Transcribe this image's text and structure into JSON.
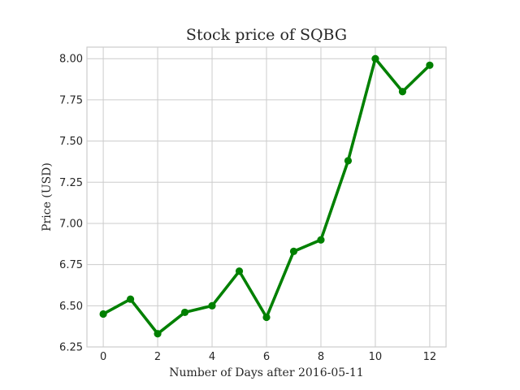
{
  "chart_data": {
    "type": "line",
    "title": "Stock price of SQBG",
    "xlabel": "Number of Days after 2016-05-11",
    "ylabel": "Price (USD)",
    "x": [
      0,
      1,
      2,
      3,
      4,
      5,
      6,
      7,
      8,
      9,
      10,
      11,
      12
    ],
    "series": [
      {
        "values": [
          6.45,
          6.54,
          6.33,
          6.46,
          6.5,
          6.71,
          6.43,
          6.83,
          6.9,
          7.38,
          8.0,
          7.8,
          7.96
        ],
        "color": "#008000",
        "marker": "circle"
      }
    ],
    "xlim": [
      -0.6,
      12.6
    ],
    "ylim": [
      6.25,
      8.07
    ],
    "xticks": [
      0,
      2,
      4,
      6,
      8,
      10,
      12
    ],
    "xtick_labels": [
      "0",
      "2",
      "4",
      "6",
      "8",
      "10",
      "12"
    ],
    "yticks": [
      6.25,
      6.5,
      6.75,
      7.0,
      7.25,
      7.5,
      7.75,
      8.0
    ],
    "ytick_labels": [
      "6.25",
      "6.50",
      "6.75",
      "7.00",
      "7.25",
      "7.50",
      "7.75",
      "8.00"
    ],
    "grid": true
  }
}
